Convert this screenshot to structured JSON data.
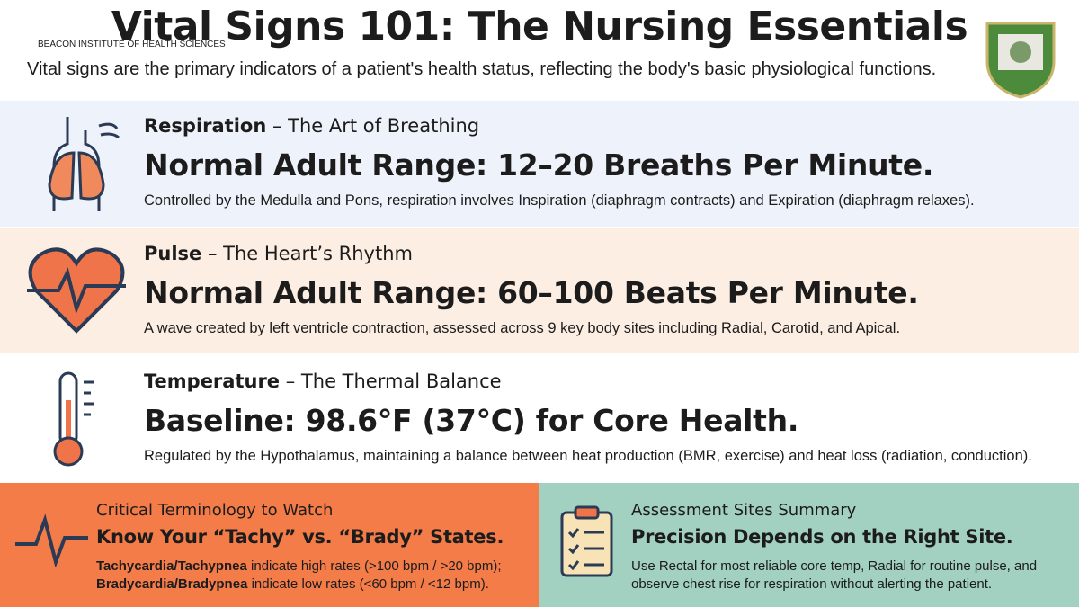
{
  "header": {
    "title": "Vital Signs 101: The Nursing Essentials",
    "institute": "BEACON INSTITUTE OF HEALTH SCIENCES",
    "subtitle": "Vital signs are the primary indicators of a patient's health status, reflecting the body's basic physiological functions."
  },
  "sections": [
    {
      "name": "Respiration",
      "tagline": "– The Art of Breathing",
      "headline": "Normal Adult Range: 12–20 Breaths Per Minute.",
      "description": "Controlled by the Medulla and Pons, respiration involves Inspiration (diaphragm contracts) and Expiration (diaphragm relaxes)."
    },
    {
      "name": "Pulse",
      "tagline": "– The Heart’s Rhythm",
      "headline": "Normal Adult Range: 60–100 Beats Per Minute.",
      "description": "A wave created by left ventricle contraction, assessed across 9 key body sites including Radial, Carotid, and Apical."
    },
    {
      "name": "Temperature",
      "tagline": "– The Thermal Balance",
      "headline": "Baseline: 98.6°F (37°C) for Core Health.",
      "description": "Regulated by the Hypothalamus, maintaining a balance between heat production (BMR, exercise) and heat loss (radiation, conduction)."
    }
  ],
  "cards": [
    {
      "kicker": "Critical Terminology to Watch",
      "headline": "Know Your “Tachy” vs. “Brady” States.",
      "lines": [
        {
          "bold": "Tachycardia/Tachypnea",
          "text": " indicate high rates (>100 bpm / >20 bpm);"
        },
        {
          "bold": "Bradycardia/Bradypnea",
          "text": " indicate low rates (<60 bpm / <12 bpm)."
        }
      ]
    },
    {
      "kicker": "Assessment Sites Summary",
      "headline": "Precision Depends on the Right Site.",
      "lines": [
        {
          "text": "Use Rectal for most reliable core temp, Radial for routine pulse, and observe chest rise for respiration without alerting the patient."
        }
      ]
    }
  ]
}
